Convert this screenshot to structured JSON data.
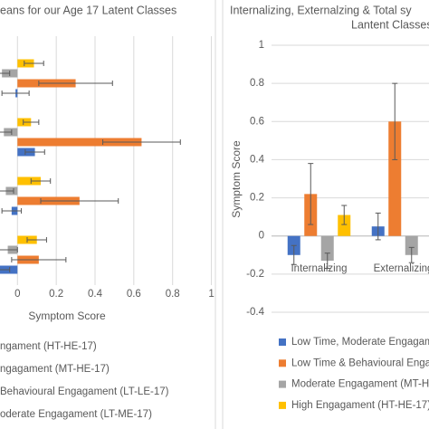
{
  "chart_data": [
    {
      "type": "bar",
      "orientation": "horizontal",
      "title": "eans for our Age 17 Latent Classes",
      "x_label": "Symptom Score",
      "categories": [
        null,
        null,
        null,
        null
      ],
      "series": [
        {
          "name": "ngament (HT-HE-17)",
          "color": "#ffc000",
          "values": [
            0.085,
            0.07,
            0.12,
            0.1
          ],
          "errors": [
            0.05,
            0.04,
            0.05,
            0.05
          ]
        },
        {
          "name": "ngagament (MT-HE-17)",
          "color": "#a5a5a5",
          "values": [
            -0.08,
            -0.07,
            -0.06,
            -0.05
          ],
          "errors": [
            0.04,
            0.04,
            0.04,
            0.05
          ]
        },
        {
          "name": "Behavioural Engagament (LT-LE-17)",
          "color": "#ed7d31",
          "values": [
            0.3,
            0.64,
            0.32,
            0.11
          ],
          "errors": [
            0.19,
            0.2,
            0.2,
            0.14
          ]
        },
        {
          "name": "oderate Engagament (LT-ME-17)",
          "color": "#4472c4",
          "values": [
            -0.01,
            0.09,
            -0.03,
            -0.09
          ],
          "errors": [
            0.07,
            0.05,
            0.05,
            0.05
          ]
        }
      ],
      "xlim": [
        -0.09,
        1.03
      ],
      "xticks": [
        0,
        0.2,
        0.4,
        0.6,
        0.8,
        1
      ],
      "grid": true
    },
    {
      "type": "bar",
      "orientation": "vertical",
      "title": "Internalizing, Externalzing & Total sy",
      "subtitle": "Lantent Classes",
      "y_label": "Symptom Score",
      "categories": [
        "Internalizing",
        "Externalizing"
      ],
      "series": [
        {
          "name": "Low Time, Moderate Engagamen",
          "color": "#4472c4",
          "values": [
            -0.1,
            0.05
          ],
          "errors": [
            0.05,
            0.07
          ]
        },
        {
          "name": "Low Time & Behavioural Engag",
          "color": "#ed7d31",
          "values": [
            0.22,
            0.6
          ],
          "errors": [
            0.16,
            0.2
          ]
        },
        {
          "name": "Moderate Engagament (MT-HE",
          "color": "#a5a5a5",
          "values": [
            -0.13,
            -0.1
          ],
          "errors": [
            0.04,
            0.04
          ]
        },
        {
          "name": "High Engagament (HT-HE-17)",
          "color": "#ffc000",
          "values": [
            0.11,
            null
          ],
          "errors": [
            0.05,
            null
          ]
        }
      ],
      "ylim": [
        -0.4,
        1
      ],
      "yticks": [
        1,
        0.8,
        0.6,
        0.4,
        0.2,
        0,
        -0.2,
        -0.4
      ],
      "grid": true
    }
  ]
}
